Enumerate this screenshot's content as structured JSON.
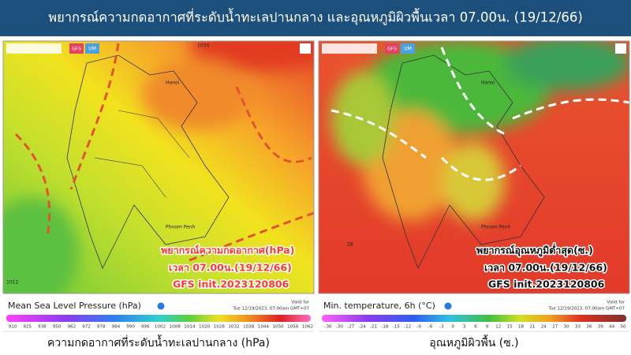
{
  "header": {
    "title": "พยากรณ์ความกดอากาศที่ระดับน้ำทะเลปานกลาง และอุณหภูมิผิวพื้นเวลา 07.00น. (19/12/66)"
  },
  "panels": [
    {
      "buttons": [
        "GFS",
        "UM"
      ],
      "map_labels": [
        "1034",
        "Hanoi",
        "Phnom Penh",
        "1012"
      ],
      "annotations": [
        "พยากรณ์ความกดอากาศ(hPa)",
        "เวลา 07.00น.(19/12/66)",
        "GFS init.2023120806"
      ],
      "legend": {
        "title": "Mean Sea Level Pressure (hPa)",
        "valid_label": "Valid for",
        "valid_time": "Tue 12/19/2023, 07:00am GMT+07",
        "ticks": [
          910,
          925,
          938,
          950,
          962,
          972,
          978,
          984,
          990,
          996,
          1002,
          1008,
          1014,
          1020,
          1026,
          1032,
          1038,
          1044,
          1050,
          1056,
          1062
        ]
      },
      "caption": "ความกดอากาศที่ระดับน้ำทะเลปานกลาง (hPa)"
    },
    {
      "buttons": [
        "GFS",
        "UM"
      ],
      "map_labels": [
        "Hanoi",
        "Phnom Penh",
        "28"
      ],
      "annotations": [
        "พยากรณ์อุณหภูมิต่ำสุด(ซ.)",
        "เวลา 07.00น.(19/12/66)",
        "GFS init.2023120806"
      ],
      "legend": {
        "title": "Min. temperature, 6h (°C)",
        "valid_label": "Valid for",
        "valid_time": "Tue 12/19/2023, 07:00am GMT+07",
        "ticks": [
          -36,
          -30,
          -27,
          -24,
          -21,
          -18,
          -15,
          -12,
          -9,
          -6,
          -3,
          0,
          3,
          6,
          9,
          12,
          15,
          18,
          21,
          24,
          27,
          30,
          33,
          36,
          39,
          44,
          50
        ]
      },
      "caption": "อุณหภูมิผิวพื้น (ซ.)"
    }
  ]
}
